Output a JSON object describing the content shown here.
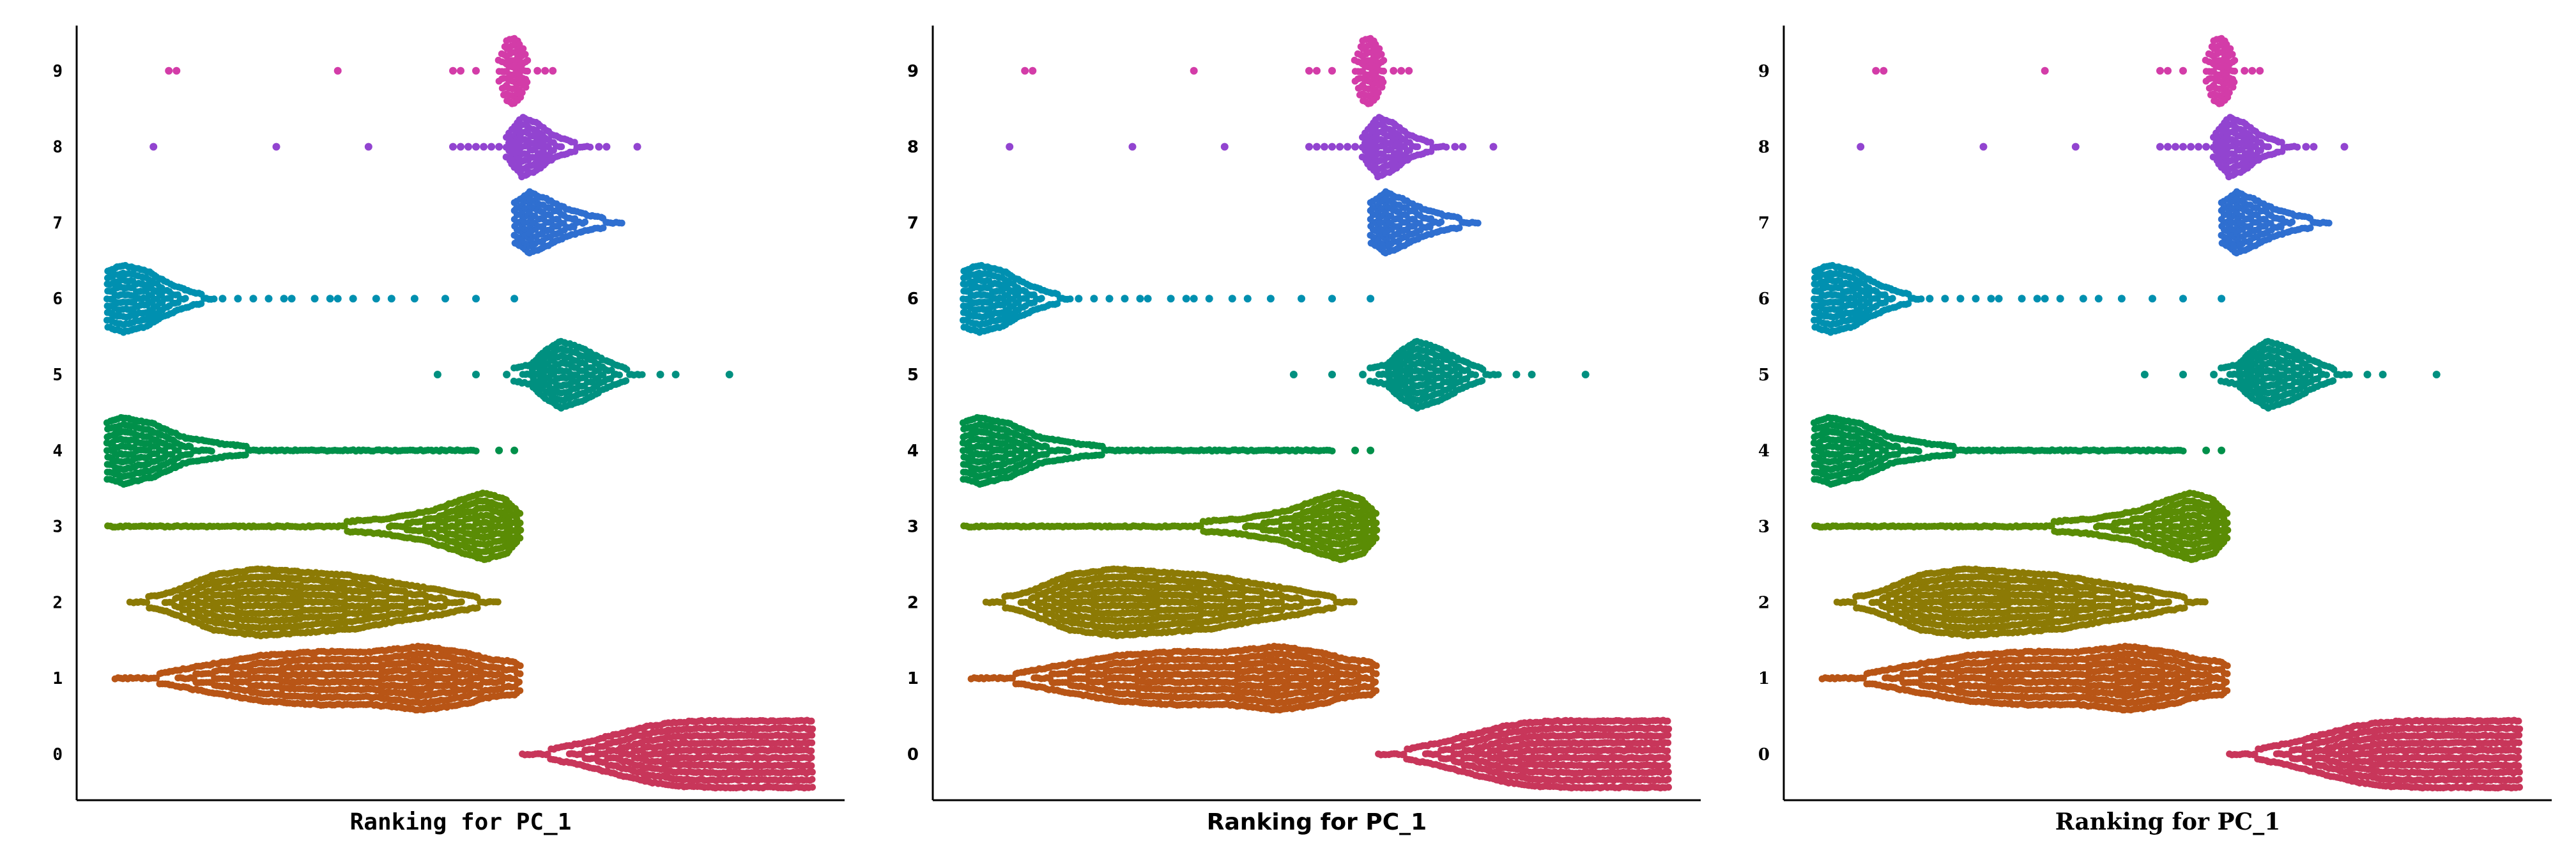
{
  "chart_data": [
    {
      "type": "scatter",
      "font": "mono",
      "xlabel": "Ranking for PC_1",
      "ylabel": "",
      "title": "",
      "xlim": [
        0,
        100
      ],
      "categories": [
        "0",
        "1",
        "2",
        "3",
        "4",
        "5",
        "6",
        "7",
        "8",
        "9"
      ],
      "grid": false,
      "legend": "none",
      "colors": {
        "0": "#C8365A",
        "1": "#B85516",
        "2": "#8C7A05",
        "3": "#5A8C05",
        "4": "#00904A",
        "5": "#009080",
        "6": "#0090B0",
        "7": "#2F6FD0",
        "8": "#9244D0",
        "9": "#D33CA8"
      },
      "clusters": [
        {
          "name": "0",
          "range": [
            58,
            96
          ],
          "profile": [
            [
              58,
              0.04
            ],
            [
              62,
              0.16
            ],
            [
              66,
              0.34
            ],
            [
              70,
              0.58
            ],
            [
              74,
              0.82
            ],
            [
              78,
              0.96
            ],
            [
              82,
              1.0
            ],
            [
              96,
              1.0
            ]
          ],
          "outliers": []
        },
        {
          "name": "1",
          "range": [
            5,
            58
          ],
          "profile": [
            [
              5,
              0.04
            ],
            [
              10,
              0.12
            ],
            [
              16,
              0.36
            ],
            [
              24,
              0.68
            ],
            [
              32,
              0.8
            ],
            [
              38,
              0.78
            ],
            [
              45,
              0.96
            ],
            [
              50,
              0.8
            ],
            [
              54,
              0.56
            ],
            [
              57,
              0.5
            ],
            [
              58,
              0.3
            ]
          ],
          "outliers": []
        },
        {
          "name": "2",
          "range": [
            7,
            55
          ],
          "profile": [
            [
              7,
              0.05
            ],
            [
              12,
              0.28
            ],
            [
              18,
              0.84
            ],
            [
              24,
              1.0
            ],
            [
              30,
              0.9
            ],
            [
              36,
              0.8
            ],
            [
              42,
              0.56
            ],
            [
              48,
              0.34
            ],
            [
              52,
              0.16
            ],
            [
              55,
              0.06
            ]
          ],
          "outliers": []
        },
        {
          "name": "3",
          "range": [
            4,
            58
          ],
          "profile": [
            [
              4,
              0.06
            ],
            [
              20,
              0.08
            ],
            [
              32,
              0.1
            ],
            [
              40,
              0.22
            ],
            [
              46,
              0.46
            ],
            [
              50,
              0.78
            ],
            [
              53,
              1.0
            ],
            [
              56,
              0.8
            ],
            [
              58,
              0.3
            ]
          ],
          "outliers": []
        },
        {
          "name": "4",
          "range": [
            4,
            52
          ],
          "profile": [
            [
              4,
              0.85
            ],
            [
              6,
              1.0
            ],
            [
              10,
              0.8
            ],
            [
              14,
              0.38
            ],
            [
              20,
              0.16
            ],
            [
              28,
              0.1
            ],
            [
              40,
              0.08
            ],
            [
              52,
              0.05
            ]
          ],
          "outliers": [
            55,
            57
          ]
        },
        {
          "name": "5",
          "range": [
            57,
            74
          ],
          "profile": [
            [
              57,
              0.2
            ],
            [
              59,
              0.28
            ],
            [
              61,
              0.72
            ],
            [
              63,
              1.0
            ],
            [
              66,
              0.78
            ],
            [
              69,
              0.4
            ],
            [
              72,
              0.14
            ],
            [
              74,
              0.05
            ]
          ],
          "outliers": [
            47,
            52,
            56,
            76,
            78,
            85
          ]
        },
        {
          "name": "6",
          "range": [
            4,
            18
          ],
          "profile": [
            [
              4,
              0.84
            ],
            [
              6,
              1.0
            ],
            [
              9,
              0.84
            ],
            [
              12,
              0.46
            ],
            [
              15,
              0.2
            ],
            [
              18,
              0.08
            ]
          ],
          "outliers": [
            19,
            21,
            23,
            25,
            27,
            28,
            31,
            33,
            34,
            36,
            39,
            41,
            44,
            48,
            52,
            57
          ]
        },
        {
          "name": "7",
          "range": [
            57,
            71
          ],
          "profile": [
            [
              57,
              0.6
            ],
            [
              59,
              0.92
            ],
            [
              61,
              0.72
            ],
            [
              64,
              0.4
            ],
            [
              67,
              0.2
            ],
            [
              71,
              0.08
            ]
          ],
          "outliers": []
        },
        {
          "name": "8",
          "range": [
            56,
            67
          ],
          "profile": [
            [
              56,
              0.3
            ],
            [
              58,
              0.9
            ],
            [
              60,
              0.7
            ],
            [
              62,
              0.35
            ],
            [
              64,
              0.18
            ],
            [
              67,
              0.06
            ]
          ],
          "outliers": [
            10,
            26,
            38,
            49,
            50,
            51,
            52,
            53,
            54,
            55,
            68,
            69,
            73
          ]
        },
        {
          "name": "9",
          "range": [
            55,
            59
          ],
          "profile": [
            [
              55,
              0.3
            ],
            [
              56,
              0.9
            ],
            [
              57,
              1.0
            ],
            [
              58,
              0.7
            ],
            [
              59,
              0.2
            ]
          ],
          "outliers": [
            12,
            13,
            34,
            49,
            50,
            52,
            60,
            61,
            62
          ]
        }
      ]
    },
    {
      "type": "scatter",
      "font": "sans",
      "xlabel": "Ranking for PC_1",
      "ylabel": "",
      "title": "",
      "xlim": [
        0,
        100
      ],
      "categories": [
        "0",
        "1",
        "2",
        "3",
        "4",
        "5",
        "6",
        "7",
        "8",
        "9"
      ],
      "grid": false,
      "legend": "none"
    },
    {
      "type": "scatter",
      "font": "serif",
      "xlabel": "Ranking for PC_1",
      "ylabel": "",
      "title": "",
      "xlim": [
        0,
        100
      ],
      "categories": [
        "0",
        "1",
        "2",
        "3",
        "4",
        "5",
        "6",
        "7",
        "8",
        "9"
      ],
      "grid": false,
      "legend": "none"
    }
  ]
}
